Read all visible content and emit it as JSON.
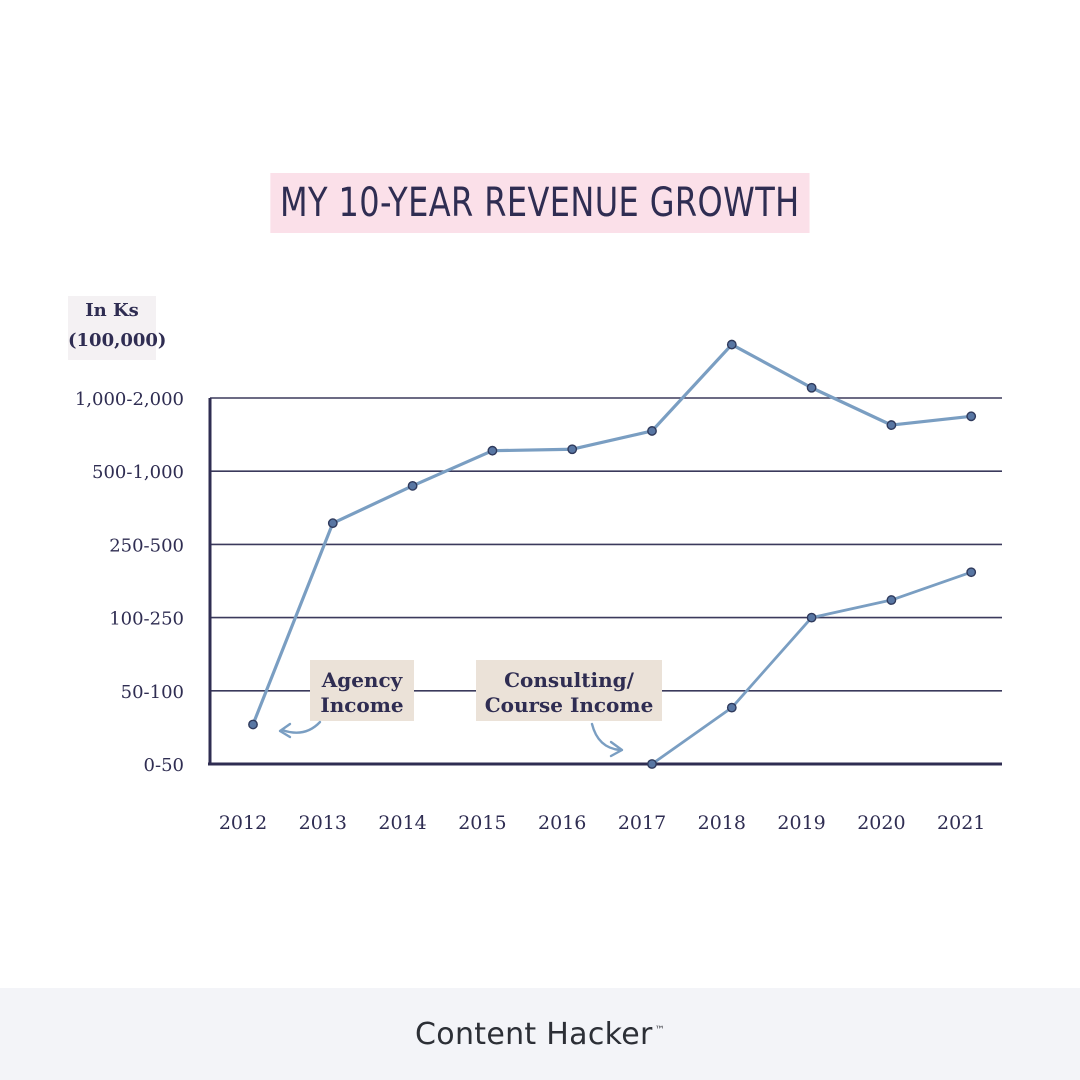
{
  "footer": {
    "brand": "Content Hacker",
    "trademark": "™"
  },
  "chart_data": {
    "type": "line",
    "title": "MY 10-YEAR REVENUE GROWTH",
    "ylabel_lines": [
      "In Ks",
      "(100,000)"
    ],
    "xlabel": "",
    "categories": [
      "2012",
      "2013",
      "2014",
      "2015",
      "2016",
      "2017",
      "2018",
      "2019",
      "2020",
      "2021"
    ],
    "y_categories": [
      "0-50",
      "50-100",
      "100-250",
      "250-500",
      "500-1,000",
      "1,000-2,000"
    ],
    "ylim": [
      0,
      5.85
    ],
    "grid": true,
    "colors": {
      "series": "#7a9ec2",
      "marker": "#5876a3",
      "axis": "#2f2d52",
      "grid": "#3b3a5c",
      "note_bg": "#ebe2d8"
    },
    "series": [
      {
        "name": "Agency Income",
        "points": [
          [
            2012,
            0.54
          ],
          [
            2013,
            3.29
          ],
          [
            2014,
            3.8
          ],
          [
            2015,
            4.28
          ],
          [
            2016,
            4.3
          ],
          [
            2017,
            4.55
          ],
          [
            2018,
            5.73
          ],
          [
            2019,
            5.14
          ],
          [
            2020,
            4.63
          ],
          [
            2021,
            4.75
          ]
        ]
      },
      {
        "name": "Consulting/ Course Income",
        "points": [
          [
            2017,
            0.0
          ],
          [
            2018,
            0.77
          ],
          [
            2019,
            2.0
          ],
          [
            2020,
            2.24
          ],
          [
            2021,
            2.62
          ]
        ]
      }
    ],
    "annotations": [
      {
        "lines": [
          "Agency",
          "Income"
        ],
        "series": 0
      },
      {
        "lines": [
          "Consulting/",
          "Course Income"
        ],
        "series": 1
      }
    ]
  }
}
